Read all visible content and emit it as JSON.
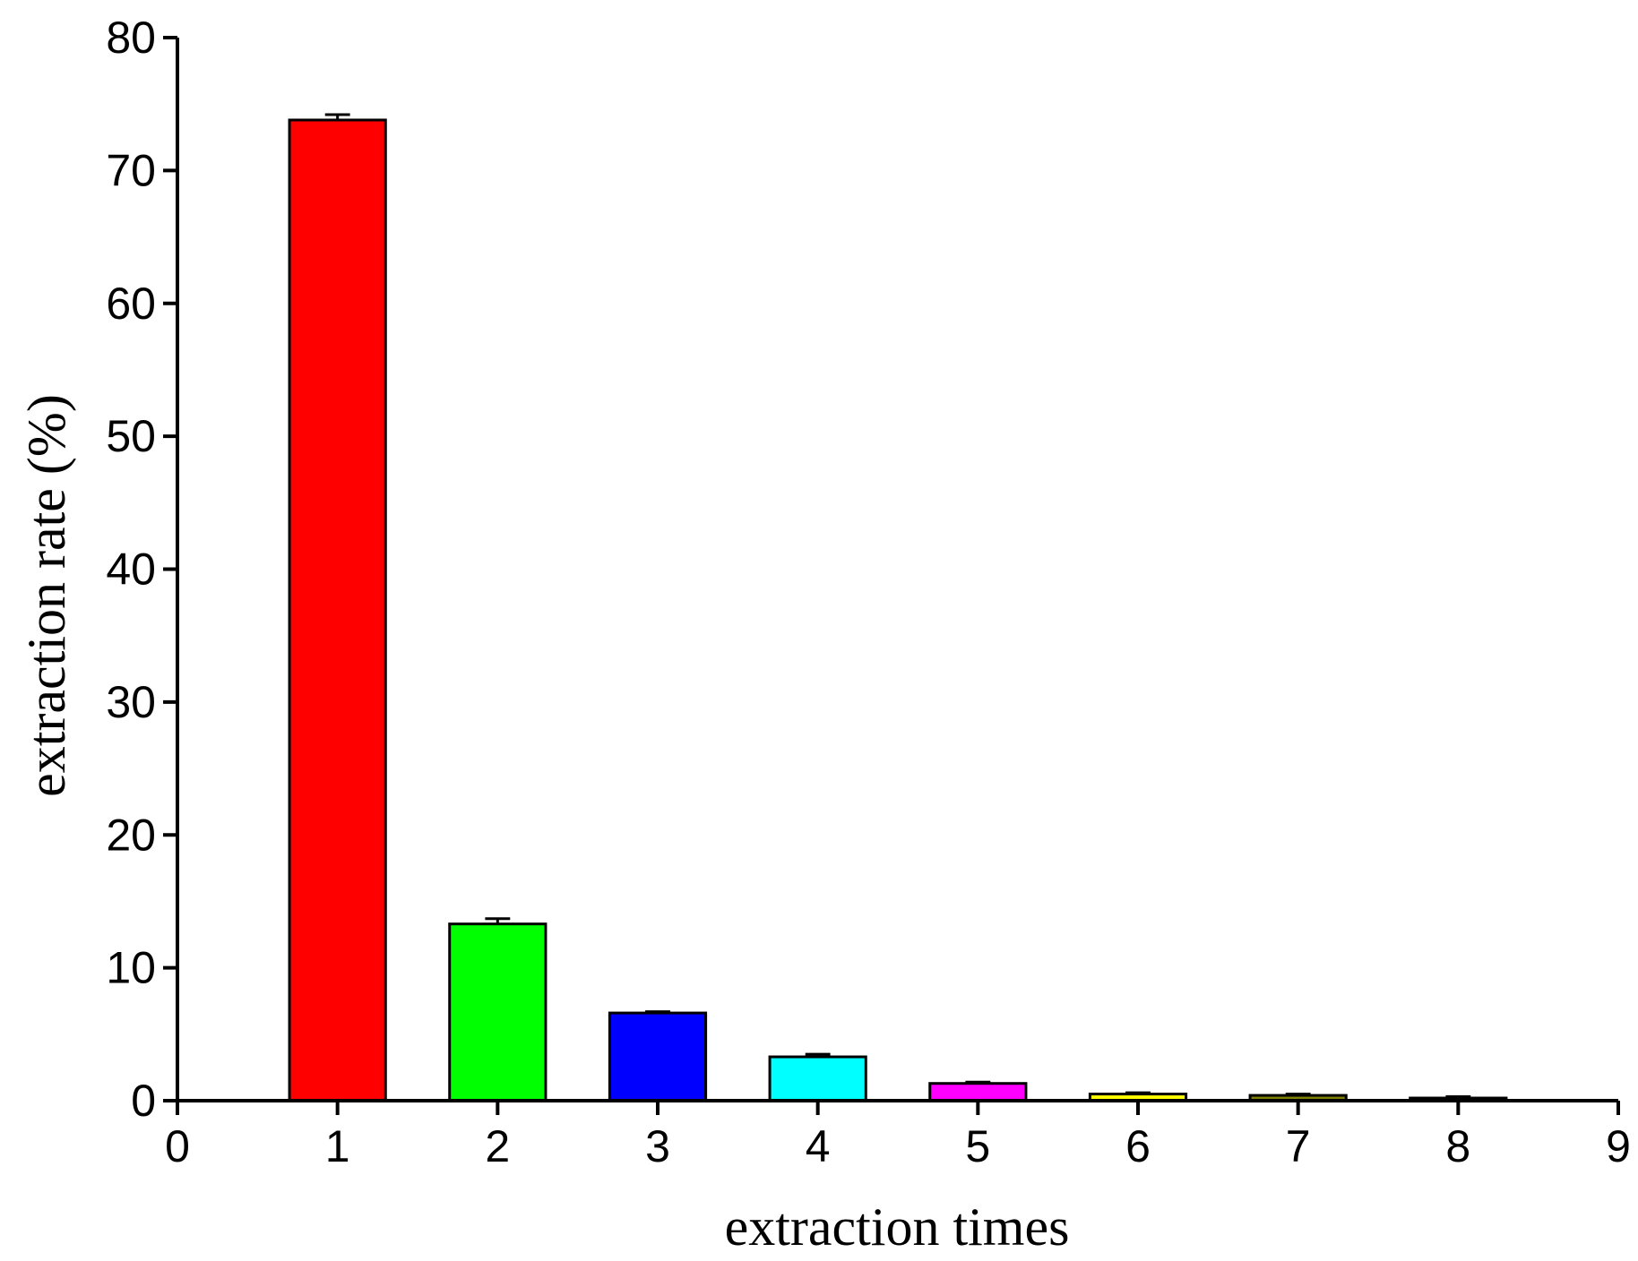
{
  "chart_data": {
    "type": "bar",
    "xlabel": "extraction times",
    "ylabel": "extraction rate (%)",
    "xlim": [
      0,
      9
    ],
    "ylim": [
      0,
      80
    ],
    "x_ticks": [
      "0",
      "1",
      "2",
      "3",
      "4",
      "5",
      "6",
      "7",
      "8",
      "9"
    ],
    "y_ticks": [
      "0",
      "10",
      "20",
      "30",
      "40",
      "50",
      "60",
      "70",
      "80"
    ],
    "grid": false,
    "categories": [
      1,
      2,
      3,
      4,
      5,
      6,
      7,
      8
    ],
    "values": [
      73.8,
      13.3,
      6.6,
      3.3,
      1.3,
      0.5,
      0.4,
      0.2
    ],
    "errors": [
      0.4,
      0.4,
      0.1,
      0.2,
      0.1,
      0.1,
      0.1,
      0.1
    ],
    "colors": [
      "#ff0000",
      "#00ff00",
      "#0000ff",
      "#00ffff",
      "#ff00ff",
      "#ffff00",
      "#808000",
      "#404040"
    ]
  }
}
